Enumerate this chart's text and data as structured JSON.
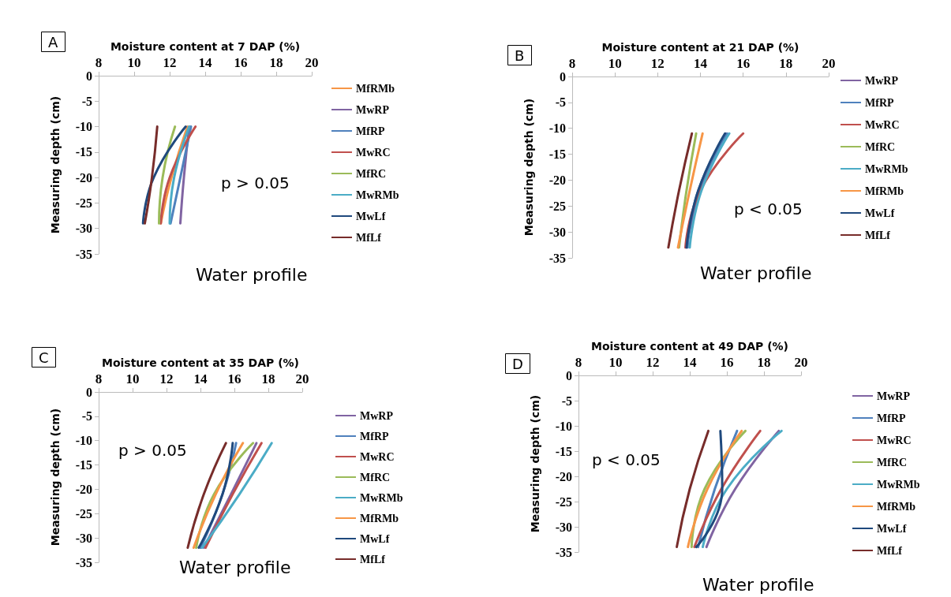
{
  "chart_data": [
    {
      "type": "line",
      "title": "A",
      "xlabel": "Moisture content at 7 DAP (%)",
      "ylabel": "Measuring depth (cm)",
      "xlim": [
        8,
        20
      ],
      "xticks": [
        8,
        10,
        12,
        14,
        16,
        18,
        20
      ],
      "ylim": [
        -35,
        0
      ],
      "yticks": [
        0,
        -5,
        -10,
        -15,
        -20,
        -25,
        -30,
        -35
      ],
      "legend": "right",
      "grid": false,
      "annotations": [
        "p > 0.05",
        "Water profile"
      ],
      "series": [
        {
          "name": "MfRMb",
          "color": "#f79646",
          "x": [
            13.0,
            12.1,
            11.5
          ],
          "values": [
            -10,
            -20,
            -29
          ]
        },
        {
          "name": "MwRP",
          "color": "#8064a2",
          "x": [
            13.1,
            12.8,
            12.6
          ],
          "values": [
            -10,
            -20,
            -29
          ]
        },
        {
          "name": "MfRP",
          "color": "#4f81bd",
          "x": [
            13.2,
            12.6,
            12.05
          ],
          "values": [
            -10,
            -20,
            -29
          ]
        },
        {
          "name": "MwRC",
          "color": "#c0504d",
          "x": [
            13.45,
            12.0,
            11.5
          ],
          "values": [
            -10,
            -20,
            -29
          ]
        },
        {
          "name": "MfRC",
          "color": "#9bbb59",
          "x": [
            12.3,
            11.6,
            11.4
          ],
          "values": [
            -10,
            -20,
            -29
          ]
        },
        {
          "name": "MwRMb",
          "color": "#4bacc6",
          "x": [
            13.1,
            12.25,
            12.0
          ],
          "values": [
            -10,
            -20,
            -29
          ]
        },
        {
          "name": "MwLf",
          "color": "#1f497d",
          "x": [
            12.9,
            11.1,
            10.5
          ],
          "values": [
            -10,
            -20,
            -29
          ]
        },
        {
          "name": "MfLf",
          "color": "#772c2a",
          "x": [
            11.3,
            11.0,
            10.6
          ],
          "values": [
            -10,
            -20,
            -29
          ]
        }
      ]
    },
    {
      "type": "line",
      "title": "B",
      "xlabel": "Moisture content at 21 DAP (%)",
      "ylabel": "Measuring depth (cm)",
      "xlim": [
        8,
        20
      ],
      "xticks": [
        8,
        10,
        12,
        14,
        16,
        18,
        20
      ],
      "ylim": [
        -35,
        0
      ],
      "yticks": [
        0,
        -5,
        -10,
        -15,
        -20,
        -25,
        -30,
        -35
      ],
      "legend": "right",
      "grid": false,
      "annotations": [
        "p < 0.05",
        "Water profile"
      ],
      "series": [
        {
          "name": "MwRP",
          "color": "#8064a2",
          "x": [
            15.2,
            14.0,
            13.35
          ],
          "values": [
            -11,
            -22,
            -33
          ]
        },
        {
          "name": "MfRP",
          "color": "#4f81bd",
          "x": [
            15.25,
            13.9,
            13.4
          ],
          "values": [
            -11,
            -22,
            -33
          ]
        },
        {
          "name": "MwRC",
          "color": "#c0504d",
          "x": [
            16.0,
            14.0,
            13.3
          ],
          "values": [
            -11,
            -22,
            -33
          ]
        },
        {
          "name": "MfRC",
          "color": "#9bbb59",
          "x": [
            13.8,
            13.35,
            13.0
          ],
          "values": [
            -11,
            -22,
            -33
          ]
        },
        {
          "name": "MwRMb",
          "color": "#4bacc6",
          "x": [
            15.35,
            14.05,
            13.5
          ],
          "values": [
            -11,
            -22,
            -33
          ]
        },
        {
          "name": "MfRMb",
          "color": "#f79646",
          "x": [
            14.1,
            13.5,
            12.95
          ],
          "values": [
            -11,
            -22,
            -33
          ]
        },
        {
          "name": "MwLf",
          "color": "#1f497d",
          "x": [
            15.15,
            13.9,
            13.35
          ],
          "values": [
            -11,
            -22,
            -33
          ]
        },
        {
          "name": "MfLf",
          "color": "#772c2a",
          "x": [
            13.6,
            13.0,
            12.5
          ],
          "values": [
            -11,
            -22,
            -33
          ]
        }
      ]
    },
    {
      "type": "line",
      "title": "C",
      "xlabel": "Moisture content at 35 DAP (%)",
      "ylabel": "Measuring depth (cm)",
      "xlim": [
        8,
        20
      ],
      "xticks": [
        8,
        10,
        12,
        14,
        16,
        18,
        20
      ],
      "ylim": [
        -35,
        0
      ],
      "yticks": [
        0,
        -5,
        -10,
        -15,
        -20,
        -25,
        -30,
        -35
      ],
      "legend": "right",
      "grid": false,
      "annotations": [
        "p > 0.05",
        "Water profile"
      ],
      "series": [
        {
          "name": "MwRP",
          "color": "#8064a2",
          "x": [
            17.3,
            15.8,
            14.2
          ],
          "values": [
            -10.5,
            -21,
            -32
          ]
        },
        {
          "name": "MfRP",
          "color": "#4f81bd",
          "x": [
            16.1,
            15.3,
            14.0
          ],
          "values": [
            -10.5,
            -21,
            -32
          ]
        },
        {
          "name": "MwRC",
          "color": "#c0504d",
          "x": [
            17.6,
            15.9,
            14.3
          ],
          "values": [
            -10.5,
            -21,
            -32
          ]
        },
        {
          "name": "MfRC",
          "color": "#9bbb59",
          "x": [
            17.1,
            14.8,
            13.75
          ],
          "values": [
            -10.5,
            -21,
            -32
          ]
        },
        {
          "name": "MwRMb",
          "color": "#4bacc6",
          "x": [
            18.2,
            16.3,
            14.1
          ],
          "values": [
            -10.5,
            -21,
            -32
          ]
        },
        {
          "name": "MfRMb",
          "color": "#f79646",
          "x": [
            16.5,
            14.9,
            13.6
          ],
          "values": [
            -10.5,
            -21,
            -32
          ]
        },
        {
          "name": "MwLf",
          "color": "#1f497d",
          "x": [
            15.9,
            15.3,
            13.9
          ],
          "values": [
            -10.5,
            -21,
            -32
          ]
        },
        {
          "name": "MfLf",
          "color": "#772c2a",
          "x": [
            15.5,
            14.2,
            13.25
          ],
          "values": [
            -10.5,
            -21,
            -32
          ]
        }
      ]
    },
    {
      "type": "line",
      "title": "D",
      "xlabel": "Moisture content at 49 DAP (%)",
      "ylabel": "Measuring depth (cm)",
      "xlim": [
        8,
        20
      ],
      "xticks": [
        8,
        10,
        12,
        14,
        16,
        18,
        20
      ],
      "ylim": [
        -35,
        0
      ],
      "yticks": [
        0,
        -5,
        -10,
        -15,
        -20,
        -25,
        -30,
        -35
      ],
      "legend": "right",
      "grid": false,
      "annotations": [
        "p < 0.05",
        "Water profile"
      ],
      "series": [
        {
          "name": "MwRP",
          "color": "#8064a2",
          "x": [
            18.8,
            16.45,
            14.9
          ],
          "values": [
            -11,
            -22.5,
            -34
          ]
        },
        {
          "name": "MfRP",
          "color": "#4f81bd",
          "x": [
            16.55,
            15.35,
            14.45
          ],
          "values": [
            -11,
            -22.5,
            -34
          ]
        },
        {
          "name": "MwRC",
          "color": "#c0504d",
          "x": [
            17.8,
            15.7,
            14.25
          ],
          "values": [
            -11,
            -22.5,
            -34
          ]
        },
        {
          "name": "MfRC",
          "color": "#9bbb59",
          "x": [
            17.0,
            14.8,
            14.1
          ],
          "values": [
            -11,
            -22.5,
            -34
          ]
        },
        {
          "name": "MwRMb",
          "color": "#4bacc6",
          "x": [
            18.95,
            16.0,
            14.7
          ],
          "values": [
            -11,
            -22.5,
            -34
          ]
        },
        {
          "name": "MfRMb",
          "color": "#f79646",
          "x": [
            16.8,
            14.95,
            13.9
          ],
          "values": [
            -11,
            -22.5,
            -34
          ]
        },
        {
          "name": "MwLf",
          "color": "#1f497d",
          "x": [
            15.65,
            15.75,
            14.35
          ],
          "values": [
            -11,
            -22.5,
            -34
          ]
        },
        {
          "name": "MfLf",
          "color": "#772c2a",
          "x": [
            15.0,
            14.0,
            13.3
          ],
          "values": [
            -11,
            -22.5,
            -34
          ]
        }
      ]
    }
  ]
}
